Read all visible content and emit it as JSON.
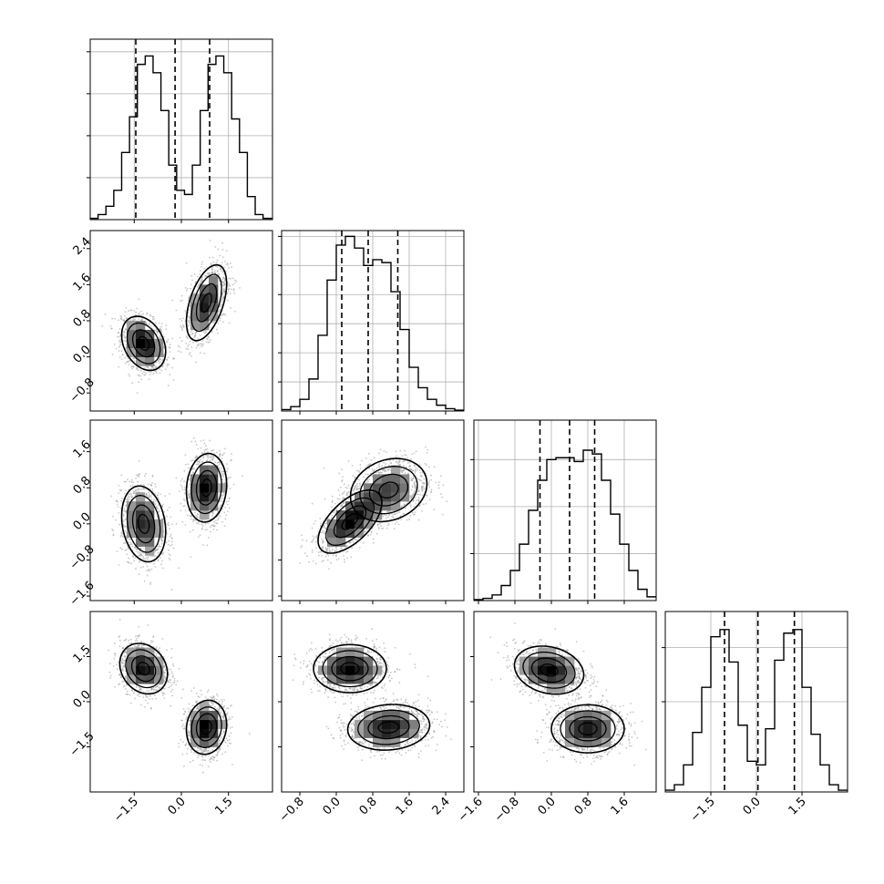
{
  "chart_data": {
    "type": "corner",
    "n_params": 4,
    "params": [
      {
        "range": [
          -2.9,
          2.9
        ],
        "tick_values": [
          -1.5,
          0.0,
          1.5
        ],
        "tick_labels": [
          "−1.5",
          "0.0",
          "1.5"
        ],
        "quantiles": [
          -1.45,
          -0.2,
          0.9
        ],
        "hist_bins": [
          -2.9,
          -2.65,
          -2.4,
          -2.15,
          -1.9,
          -1.65,
          -1.4,
          -1.15,
          -0.9,
          -0.65,
          -0.4,
          -0.15,
          0.1,
          0.35,
          0.6,
          0.85,
          1.1,
          1.35,
          1.6,
          1.85,
          2.1,
          2.35,
          2.6,
          2.9
        ],
        "hist_counts": [
          3,
          12,
          32,
          70,
          160,
          245,
          370,
          390,
          350,
          260,
          130,
          70,
          60,
          130,
          260,
          370,
          390,
          350,
          240,
          160,
          55,
          12,
          3
        ],
        "hist_ymax": 430,
        "hist_grid": [
          100,
          200,
          300,
          400
        ]
      },
      {
        "range": [
          -1.2,
          2.8
        ],
        "tick_values": [
          -0.8,
          0.0,
          0.8,
          1.6,
          2.4
        ],
        "tick_labels": [
          "−0.8",
          "0.0",
          "0.8",
          "1.6",
          "2.4"
        ],
        "quantiles": [
          0.12,
          0.7,
          1.35
        ],
        "hist_bins": [
          -1.2,
          -1.0,
          -0.8,
          -0.6,
          -0.4,
          -0.2,
          0.0,
          0.2,
          0.4,
          0.6,
          0.8,
          1.0,
          1.2,
          1.4,
          1.6,
          1.8,
          2.0,
          2.2,
          2.4,
          2.6,
          2.8
        ],
        "hist_counts": [
          5,
          15,
          40,
          110,
          260,
          450,
          570,
          600,
          560,
          500,
          520,
          510,
          410,
          280,
          150,
          80,
          40,
          20,
          8,
          3
        ],
        "hist_ymax": 620,
        "hist_grid": [
          100,
          200,
          300,
          400,
          500,
          600
        ]
      },
      {
        "range": [
          -1.7,
          2.3
        ],
        "tick_values": [
          -1.6,
          -0.8,
          0.0,
          0.8,
          1.6
        ],
        "tick_labels": [
          "−1.6",
          "−0.8",
          "0.0",
          "0.8",
          "1.6"
        ],
        "quantiles": [
          -0.25,
          0.4,
          0.95
        ],
        "hist_bins": [
          -1.7,
          -1.5,
          -1.3,
          -1.1,
          -0.9,
          -0.7,
          -0.5,
          -0.3,
          -0.1,
          0.1,
          0.3,
          0.5,
          0.7,
          0.9,
          1.1,
          1.3,
          1.5,
          1.7,
          1.9,
          2.1,
          2.3
        ],
        "hist_counts": [
          5,
          12,
          30,
          80,
          160,
          300,
          480,
          640,
          750,
          760,
          760,
          740,
          800,
          780,
          640,
          460,
          300,
          160,
          60,
          20
        ],
        "hist_ymax": 960,
        "hist_grid": [
          250,
          500,
          750
        ]
      },
      {
        "range": [
          -3.0,
          3.0
        ],
        "tick_values": [
          -1.5,
          0.0,
          1.5
        ],
        "tick_labels": [
          "−1.5",
          "0.0",
          "1.5"
        ],
        "quantiles": [
          -1.05,
          0.05,
          1.25
        ],
        "hist_bins": [
          -3.0,
          -2.7,
          -2.4,
          -2.1,
          -1.8,
          -1.5,
          -1.2,
          -0.9,
          -0.6,
          -0.3,
          0.0,
          0.3,
          0.6,
          0.9,
          1.2,
          1.5,
          1.8,
          2.1,
          2.4,
          2.7,
          3.0
        ],
        "hist_counts": [
          10,
          40,
          150,
          330,
          580,
          860,
          900,
          720,
          370,
          170,
          150,
          350,
          730,
          880,
          900,
          580,
          320,
          150,
          40,
          10
        ],
        "hist_ymax": 1000,
        "hist_grid": [
          500,
          800
        ]
      }
    ],
    "pairs": [
      {
        "x_param": 0,
        "y_param": 1,
        "clusters": [
          {
            "center": [
              -1.2,
              0.3
            ],
            "sigma": [
              0.35,
              0.3
            ],
            "rho": -0.3,
            "n": 1200
          },
          {
            "center": [
              0.8,
              1.2
            ],
            "sigma": [
              0.32,
              0.42
            ],
            "rho": 0.5,
            "n": 1200
          }
        ]
      },
      {
        "x_param": 0,
        "y_param": 2,
        "clusters": [
          {
            "center": [
              -1.2,
              0.0
            ],
            "sigma": [
              0.35,
              0.42
            ],
            "rho": -0.2,
            "n": 1200
          },
          {
            "center": [
              0.8,
              0.8
            ],
            "sigma": [
              0.32,
              0.38
            ],
            "rho": 0.1,
            "n": 1200
          }
        ]
      },
      {
        "x_param": 1,
        "y_param": 2,
        "clusters": [
          {
            "center": [
              0.3,
              0.05
            ],
            "sigma": [
              0.35,
              0.35
            ],
            "rho": 0.6,
            "n": 1200
          },
          {
            "center": [
              1.15,
              0.75
            ],
            "sigma": [
              0.42,
              0.35
            ],
            "rho": 0.2,
            "n": 1200
          }
        ]
      },
      {
        "x_param": 0,
        "y_param": 3,
        "clusters": [
          {
            "center": [
              -1.2,
              1.1
            ],
            "sigma": [
              0.38,
              0.42
            ],
            "rho": -0.2,
            "n": 1200
          },
          {
            "center": [
              0.8,
              -0.85
            ],
            "sigma": [
              0.32,
              0.45
            ],
            "rho": 0.1,
            "n": 1200
          }
        ]
      },
      {
        "x_param": 1,
        "y_param": 3,
        "clusters": [
          {
            "center": [
              0.3,
              1.1
            ],
            "sigma": [
              0.4,
              0.4
            ],
            "rho": 0.0,
            "n": 1200
          },
          {
            "center": [
              1.15,
              -0.85
            ],
            "sigma": [
              0.45,
              0.38
            ],
            "rho": 0.1,
            "n": 1200
          }
        ]
      },
      {
        "x_param": 2,
        "y_param": 3,
        "clusters": [
          {
            "center": [
              -0.05,
              1.05
            ],
            "sigma": [
              0.38,
              0.4
            ],
            "rho": -0.2,
            "n": 1200
          },
          {
            "center": [
              0.8,
              -0.9
            ],
            "sigma": [
              0.4,
              0.4
            ],
            "rho": 0.0,
            "n": 1200
          }
        ]
      }
    ],
    "grid": true,
    "colors": {
      "line": "#000000",
      "grid": "#b0b0b0",
      "points": "#9a9a9a",
      "density_low": "#ffffff",
      "density_high": "#000000"
    }
  }
}
